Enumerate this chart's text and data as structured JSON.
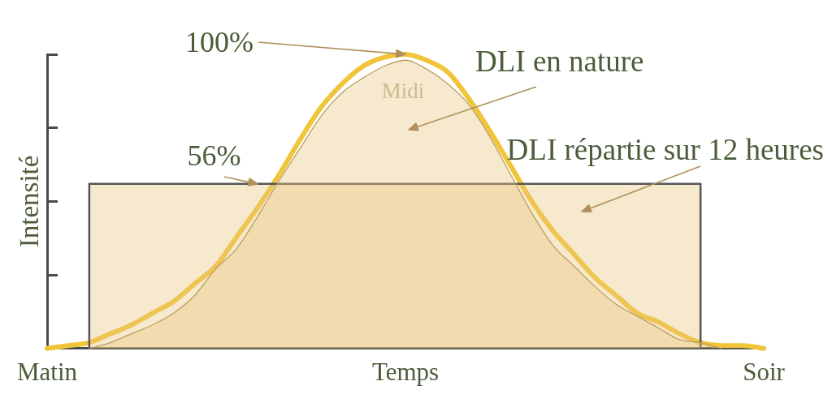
{
  "chart_data": {
    "type": "area",
    "xlabel": "Temps",
    "ylabel": "Intensité",
    "tick_labels": "x",
    "ylim": [
      0,
      100
    ],
    "yticks": [
      {
        "value": 0,
        "label": null
      },
      {
        "value": 25,
        "label": null
      },
      {
        "value": 50,
        "label": null
      },
      {
        "value": 75,
        "label": null
      },
      {
        "value": 100,
        "label": null
      }
    ],
    "categories": [
      "Matin",
      null,
      null,
      null,
      null,
      null,
      null,
      null,
      null,
      null,
      null,
      null,
      null,
      null,
      null,
      null,
      null,
      null,
      null,
      null,
      null,
      null,
      null,
      null,
      null,
      null,
      null,
      null,
      null,
      null,
      null,
      null,
      null,
      null,
      "Soir"
    ],
    "series": [
      {
        "name": "DLI en nature",
        "color": "#e9c57c",
        "values": [
          null,
          null,
          0,
          2,
          5,
          8,
          12,
          18,
          27,
          34,
          45,
          57,
          68,
          79,
          87,
          92,
          96,
          98,
          95,
          90,
          83,
          72,
          59,
          46,
          35,
          28,
          21,
          15,
          11,
          7,
          3,
          2,
          0,
          null,
          null
        ]
      },
      {
        "name": "DLI répartie sur 12 heures",
        "color": "#e9c57c",
        "values": [
          null,
          null,
          56,
          56,
          56,
          56,
          56,
          56,
          56,
          56,
          56,
          56,
          56,
          56,
          56,
          56,
          56,
          56,
          56,
          56,
          56,
          56,
          56,
          56,
          56,
          56,
          56,
          56,
          56,
          56,
          56,
          56,
          null,
          null,
          null
        ],
        "value_labels": [
          null,
          null,
          null,
          null,
          null,
          null,
          null,
          null,
          null,
          null,
          "56%",
          null,
          null,
          null,
          null,
          null,
          null,
          null,
          null,
          null,
          null,
          null,
          null,
          null,
          null,
          null,
          null,
          null,
          null,
          null,
          null,
          null,
          null,
          null,
          null
        ]
      },
      {
        "type": "line",
        "color": "#f0c53a",
        "values": [
          0,
          1,
          2,
          5,
          8,
          12,
          16,
          22,
          28,
          38,
          48,
          59,
          71,
          82,
          90,
          96,
          99,
          100,
          98,
          94,
          85,
          74,
          62,
          50,
          40,
          32,
          24,
          18,
          12,
          9,
          5,
          2,
          1,
          1,
          0
        ],
        "value_labels": [
          null,
          null,
          null,
          null,
          null,
          null,
          null,
          null,
          null,
          null,
          null,
          null,
          null,
          null,
          null,
          null,
          null,
          "100%",
          null,
          null,
          null,
          null,
          null,
          null,
          null,
          null,
          null,
          null,
          null,
          null,
          null,
          null,
          null,
          null,
          null
        ]
      }
    ],
    "annotations": [
      "Midi"
    ]
  }
}
